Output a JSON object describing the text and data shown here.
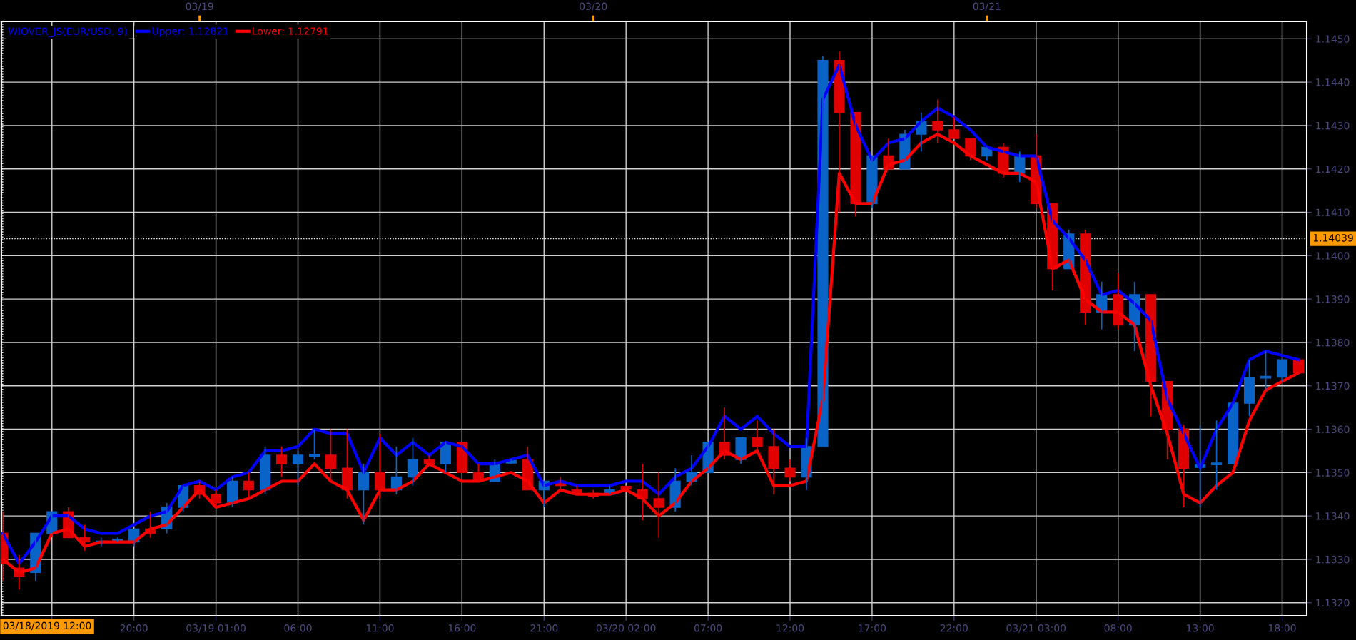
{
  "chart_data": {
    "type": "candlestick",
    "title": "WIOVER_JS(EUR/USD, 9)",
    "x": [
      "2019-03-18T12:00",
      "2019-03-18T13:00",
      "2019-03-18T14:00",
      "2019-03-18T15:00",
      "2019-03-18T16:00",
      "2019-03-18T17:00",
      "2019-03-18T18:00",
      "2019-03-18T19:00",
      "2019-03-18T20:00",
      "2019-03-18T21:00",
      "2019-03-18T22:00",
      "2019-03-18T23:00",
      "2019-03-19T00:00",
      "2019-03-19T01:00",
      "2019-03-19T02:00",
      "2019-03-19T03:00",
      "2019-03-19T04:00",
      "2019-03-19T05:00",
      "2019-03-19T06:00",
      "2019-03-19T07:00",
      "2019-03-19T08:00",
      "2019-03-19T09:00",
      "2019-03-19T10:00",
      "2019-03-19T11:00",
      "2019-03-19T12:00",
      "2019-03-19T13:00",
      "2019-03-19T14:00",
      "2019-03-19T15:00",
      "2019-03-19T16:00",
      "2019-03-19T17:00",
      "2019-03-19T18:00",
      "2019-03-19T19:00",
      "2019-03-19T20:00",
      "2019-03-19T21:00",
      "2019-03-19T22:00",
      "2019-03-19T23:00",
      "2019-03-20T00:00",
      "2019-03-20T01:00",
      "2019-03-20T02:00",
      "2019-03-20T03:00",
      "2019-03-20T04:00",
      "2019-03-20T05:00",
      "2019-03-20T06:00",
      "2019-03-20T07:00",
      "2019-03-20T08:00",
      "2019-03-20T09:00",
      "2019-03-20T10:00",
      "2019-03-20T11:00",
      "2019-03-20T12:00",
      "2019-03-20T13:00",
      "2019-03-20T14:00",
      "2019-03-20T15:00",
      "2019-03-20T16:00",
      "2019-03-20T17:00",
      "2019-03-20T18:00",
      "2019-03-20T19:00",
      "2019-03-20T20:00",
      "2019-03-20T21:00",
      "2019-03-20T22:00",
      "2019-03-20T23:00",
      "2019-03-21T00:00",
      "2019-03-21T01:00",
      "2019-03-21T02:00",
      "2019-03-21T03:00",
      "2019-03-21T04:00",
      "2019-03-21T05:00",
      "2019-03-21T06:00",
      "2019-03-21T07:00",
      "2019-03-21T08:00",
      "2019-03-21T09:00",
      "2019-03-21T10:00",
      "2019-03-21T11:00",
      "2019-03-21T12:00",
      "2019-03-21T13:00",
      "2019-03-21T14:00",
      "2019-03-21T15:00",
      "2019-03-21T16:00",
      "2019-03-21T17:00",
      "2019-03-21T18:00",
      "2019-03-21T19:00"
    ],
    "ohlc": [
      [
        1.1336,
        1.1341,
        1.1325,
        1.1329
      ],
      [
        1.1328,
        1.1331,
        1.1323,
        1.1326
      ],
      [
        1.1327,
        1.1336,
        1.1325,
        1.1336
      ],
      [
        1.1336,
        1.1341,
        1.1336,
        1.1341
      ],
      [
        1.1341,
        1.1342,
        1.1335,
        1.1335
      ],
      [
        1.1335,
        1.1338,
        1.1332,
        1.1334
      ],
      [
        1.1334,
        1.1335,
        1.1333,
        1.13342
      ],
      [
        1.1334,
        1.1335,
        1.1334,
        1.13346
      ],
      [
        1.1334,
        1.1337,
        1.1333,
        1.1337
      ],
      [
        1.1337,
        1.1341,
        1.1335,
        1.1336
      ],
      [
        1.1337,
        1.1343,
        1.1336,
        1.1342
      ],
      [
        1.1342,
        1.1347,
        1.1341,
        1.1347
      ],
      [
        1.1347,
        1.1348,
        1.1344,
        1.1345
      ],
      [
        1.1345,
        1.1346,
        1.1342,
        1.1343
      ],
      [
        1.1343,
        1.1349,
        1.1342,
        1.1348
      ],
      [
        1.1348,
        1.135,
        1.1344,
        1.1346
      ],
      [
        1.1346,
        1.1356,
        1.1345,
        1.1354
      ],
      [
        1.1354,
        1.1356,
        1.1349,
        1.1352
      ],
      [
        1.1352,
        1.1355,
        1.1347,
        1.1354
      ],
      [
        1.13538,
        1.136,
        1.1353,
        1.13542
      ],
      [
        1.1354,
        1.136,
        1.1348,
        1.1351
      ],
      [
        1.1351,
        1.136,
        1.1344,
        1.1346
      ],
      [
        1.1346,
        1.1352,
        1.1338,
        1.135
      ],
      [
        1.135,
        1.1359,
        1.1344,
        1.1346
      ],
      [
        1.1346,
        1.1356,
        1.1345,
        1.1349
      ],
      [
        1.1349,
        1.1358,
        1.1347,
        1.1353
      ],
      [
        1.1353,
        1.1354,
        1.1352,
        1.1352
      ],
      [
        1.1352,
        1.1357,
        1.135,
        1.1357
      ],
      [
        1.1357,
        1.1357,
        1.135,
        1.135
      ],
      [
        1.135,
        1.1352,
        1.1348,
        1.1348
      ],
      [
        1.1348,
        1.1353,
        1.1348,
        1.1352
      ],
      [
        1.13522,
        1.1353,
        1.1352,
        1.13528
      ],
      [
        1.1353,
        1.1356,
        1.1346,
        1.1346
      ],
      [
        1.1346,
        1.1348,
        1.1342,
        1.1348
      ],
      [
        1.1348,
        1.1349,
        1.1346,
        1.1347
      ],
      [
        1.1346,
        1.1347,
        1.1345,
        1.1345
      ],
      [
        1.13452,
        1.1346,
        1.1344,
        1.13446
      ],
      [
        1.1345,
        1.1347,
        1.1345,
        1.1346
      ],
      [
        1.13468,
        1.1347,
        1.1346,
        1.13462
      ],
      [
        1.1346,
        1.1352,
        1.1339,
        1.1344
      ],
      [
        1.1344,
        1.135,
        1.1335,
        1.1342
      ],
      [
        1.1342,
        1.1351,
        1.1341,
        1.1348
      ],
      [
        1.1348,
        1.1354,
        1.1347,
        1.135
      ],
      [
        1.135,
        1.1357,
        1.135,
        1.1357
      ],
      [
        1.1357,
        1.1365,
        1.1353,
        1.1354
      ],
      [
        1.1353,
        1.1358,
        1.1352,
        1.1358
      ],
      [
        1.1358,
        1.1362,
        1.1355,
        1.1356
      ],
      [
        1.1356,
        1.136,
        1.1345,
        1.1351
      ],
      [
        1.1351,
        1.1353,
        1.1348,
        1.1349
      ],
      [
        1.1349,
        1.1358,
        1.1346,
        1.1356
      ],
      [
        1.1356,
        1.1446,
        1.1356,
        1.1445
      ],
      [
        1.1445,
        1.1447,
        1.141,
        1.1433
      ],
      [
        1.1433,
        1.1433,
        1.1409,
        1.1412
      ],
      [
        1.1412,
        1.1423,
        1.1411,
        1.1423
      ],
      [
        1.1423,
        1.1427,
        1.142,
        1.142
      ],
      [
        1.142,
        1.1429,
        1.142,
        1.1428
      ],
      [
        1.1428,
        1.1433,
        1.1424,
        1.1431
      ],
      [
        1.1431,
        1.1436,
        1.1426,
        1.1429
      ],
      [
        1.1429,
        1.1432,
        1.1427,
        1.1427
      ],
      [
        1.1427,
        1.1427,
        1.1422,
        1.1423
      ],
      [
        1.1423,
        1.1425,
        1.1422,
        1.1425
      ],
      [
        1.1425,
        1.1426,
        1.1418,
        1.1419
      ],
      [
        1.1419,
        1.1424,
        1.1417,
        1.1423
      ],
      [
        1.1423,
        1.1428,
        1.1411,
        1.1412
      ],
      [
        1.1412,
        1.1412,
        1.1392,
        1.1397
      ],
      [
        1.1397,
        1.1406,
        1.1397,
        1.1405
      ],
      [
        1.1405,
        1.1406,
        1.1384,
        1.1387
      ],
      [
        1.1387,
        1.1394,
        1.1383,
        1.1391
      ],
      [
        1.1391,
        1.1396,
        1.1383,
        1.1384
      ],
      [
        1.1384,
        1.1394,
        1.1378,
        1.1391
      ],
      [
        1.1391,
        1.1391,
        1.1363,
        1.1371
      ],
      [
        1.1371,
        1.1371,
        1.1353,
        1.136
      ],
      [
        1.136,
        1.1361,
        1.1342,
        1.1351
      ],
      [
        1.13512,
        1.1361,
        1.1342,
        1.13518
      ],
      [
        1.13518,
        1.1362,
        1.1346,
        1.13522
      ],
      [
        1.1352,
        1.1366,
        1.1352,
        1.1366
      ],
      [
        1.1366,
        1.1376,
        1.1363,
        1.1372
      ],
      [
        1.13718,
        1.1378,
        1.1369,
        1.13722
      ],
      [
        1.1372,
        1.1376,
        1.1371,
        1.1376
      ],
      [
        1.1376,
        1.1376,
        1.1373,
        1.1373
      ]
    ],
    "colors": [
      "#e00000",
      "#e00000",
      "#0a64c8",
      "#0a64c8",
      "#e00000",
      "#e00000",
      "#0a64c8",
      "#0a64c8",
      "#0a64c8",
      "#e00000",
      "#0a64c8",
      "#0a64c8",
      "#e00000",
      "#e00000",
      "#0a64c8",
      "#e00000",
      "#0a64c8",
      "#e00000",
      "#0a64c8",
      "#0a64c8",
      "#e00000",
      "#e00000",
      "#0a64c8",
      "#e00000",
      "#0a64c8",
      "#0a64c8",
      "#e00000",
      "#0a64c8",
      "#e00000",
      "#e00000",
      "#0a64c8",
      "#0a64c8",
      "#e00000",
      "#0a64c8",
      "#e00000",
      "#e00000",
      "#e00000",
      "#0a64c8",
      "#e00000",
      "#e00000",
      "#e00000",
      "#0a64c8",
      "#0a64c8",
      "#0a64c8",
      "#e00000",
      "#0a64c8",
      "#e00000",
      "#e00000",
      "#e00000",
      "#0a64c8",
      "#0a64c8",
      "#e00000",
      "#e00000",
      "#0a64c8",
      "#e00000",
      "#0a64c8",
      "#0a64c8",
      "#e00000",
      "#e00000",
      "#e00000",
      "#0a64c8",
      "#e00000",
      "#0a64c8",
      "#e00000",
      "#e00000",
      "#0a64c8",
      "#e00000",
      "#0a64c8",
      "#e00000",
      "#0a64c8",
      "#e00000",
      "#e00000",
      "#e00000",
      "#0a64c8",
      "#0a64c8",
      "#0a64c8",
      "#0a64c8",
      "#0a64c8",
      "#0a64c8",
      "#e00000"
    ],
    "series": [
      {
        "type": "line",
        "name": "Upper: 1.12821",
        "color": "#0000ff",
        "values": [
          1.1336,
          1.1329,
          1.1334,
          1.134,
          1.134,
          1.1337,
          1.1336,
          1.1336,
          1.1338,
          1.134,
          1.1341,
          1.1347,
          1.1348,
          1.1346,
          1.1349,
          1.135,
          1.1355,
          1.1355,
          1.1356,
          1.136,
          1.1359,
          1.1359,
          1.135,
          1.1358,
          1.1354,
          1.1357,
          1.1354,
          1.1357,
          1.1356,
          1.1352,
          1.1352,
          1.1353,
          1.1354,
          1.1347,
          1.1348,
          1.1347,
          1.1347,
          1.1347,
          1.1348,
          1.1348,
          1.1345,
          1.1349,
          1.1351,
          1.1356,
          1.1363,
          1.136,
          1.1363,
          1.1359,
          1.1356,
          1.1356,
          1.1436,
          1.1444,
          1.143,
          1.1422,
          1.1426,
          1.1427,
          1.1431,
          1.1434,
          1.1432,
          1.1429,
          1.1425,
          1.1424,
          1.1423,
          1.1423,
          1.1408,
          1.1404,
          1.1399,
          1.1391,
          1.1392,
          1.1389,
          1.1385,
          1.1367,
          1.1359,
          1.1351,
          1.136,
          1.1366,
          1.1376,
          1.1378,
          1.1377,
          1.1376
        ]
      },
      {
        "type": "line",
        "name": "Lower: 1.12791",
        "color": "#ff0000",
        "values": [
          1.133,
          1.1327,
          1.1328,
          1.1336,
          1.1337,
          1.1333,
          1.1334,
          1.1334,
          1.1334,
          1.1337,
          1.1338,
          1.1342,
          1.1346,
          1.1342,
          1.1343,
          1.1344,
          1.1346,
          1.1348,
          1.1348,
          1.1352,
          1.1348,
          1.1346,
          1.1339,
          1.1346,
          1.1346,
          1.1348,
          1.1352,
          1.135,
          1.1348,
          1.1348,
          1.1349,
          1.135,
          1.1348,
          1.1343,
          1.1346,
          1.1345,
          1.1345,
          1.1345,
          1.1346,
          1.1344,
          1.134,
          1.1343,
          1.1348,
          1.1351,
          1.1355,
          1.1353,
          1.1355,
          1.1347,
          1.1347,
          1.1348,
          1.1367,
          1.1419,
          1.1412,
          1.1412,
          1.1421,
          1.1422,
          1.1426,
          1.1428,
          1.1426,
          1.1423,
          1.1421,
          1.1419,
          1.1419,
          1.1417,
          1.1397,
          1.1399,
          1.139,
          1.1387,
          1.1387,
          1.1384,
          1.137,
          1.1359,
          1.1345,
          1.1343,
          1.1347,
          1.135,
          1.1362,
          1.1369,
          1.1371,
          1.1373
        ]
      }
    ],
    "xlim": [
      "2019-03-18T11:55",
      "2019-03-21T19:30"
    ],
    "ylim": [
      1.1317,
      1.1454
    ],
    "xticks": [
      {
        "value": "2019-03-18T15:00",
        "label": null
      },
      {
        "value": "2019-03-18T20:00",
        "label": "20:00"
      },
      {
        "value": "2019-03-19T01:00",
        "label": "03/19 01:00"
      },
      {
        "value": "2019-03-19T06:00",
        "label": "06:00"
      },
      {
        "value": "2019-03-19T11:00",
        "label": "11:00"
      },
      {
        "value": "2019-03-19T16:00",
        "label": "16:00"
      },
      {
        "value": "2019-03-19T21:00",
        "label": "21:00"
      },
      {
        "value": "2019-03-20T02:00",
        "label": "03/20 02:00"
      },
      {
        "value": "2019-03-20T07:00",
        "label": "07:00"
      },
      {
        "value": "2019-03-20T12:00",
        "label": "12:00"
      },
      {
        "value": "2019-03-20T17:00",
        "label": "17:00"
      },
      {
        "value": "2019-03-20T22:00",
        "label": "22:00"
      },
      {
        "value": "2019-03-21T03:00",
        "label": "03/21 03:00"
      },
      {
        "value": "2019-03-21T08:00",
        "label": "08:00"
      },
      {
        "value": "2019-03-21T13:00",
        "label": "13:00"
      },
      {
        "value": "2019-03-21T18:00",
        "label": "18:00"
      }
    ],
    "yticks": [
      {
        "value": 1.132,
        "label": "1.1320"
      },
      {
        "value": 1.133,
        "label": "1.1330"
      },
      {
        "value": 1.134,
        "label": "1.1340"
      },
      {
        "value": 1.135,
        "label": "1.1350"
      },
      {
        "value": 1.136,
        "label": "1.1360"
      },
      {
        "value": 1.137,
        "label": "1.1370"
      },
      {
        "value": 1.138,
        "label": "1.1380"
      },
      {
        "value": 1.139,
        "label": "1.1390"
      },
      {
        "value": 1.14,
        "label": "1.1400"
      },
      {
        "value": 1.141,
        "label": "1.1410"
      },
      {
        "value": 1.142,
        "label": "1.1420"
      },
      {
        "value": 1.143,
        "label": "1.1430"
      },
      {
        "value": 1.144,
        "label": "1.1440"
      },
      {
        "value": 1.145,
        "label": "1.1450"
      }
    ],
    "x2lim": [
      "2019-03-18T11:55",
      "2019-03-21T19:30"
    ],
    "x2ticks": [
      {
        "value": "2019-03-19T00:00",
        "label": "03/19"
      },
      {
        "value": "2019-03-20T00:00",
        "label": "03/20"
      },
      {
        "value": "2019-03-21T00:00",
        "label": "03/21"
      }
    ],
    "grid": true,
    "legend": "top left",
    "ref_lines": [
      {
        "axis": "x",
        "value": "2019-03-18T12:00",
        "label": "03/18/2019 12:00",
        "color": "#ffffff",
        "line_style": "dotted"
      },
      {
        "axis": "y",
        "value": 1.14039,
        "label": "1.14039",
        "color": "#ffffff",
        "line_style": "dotted"
      }
    ]
  }
}
